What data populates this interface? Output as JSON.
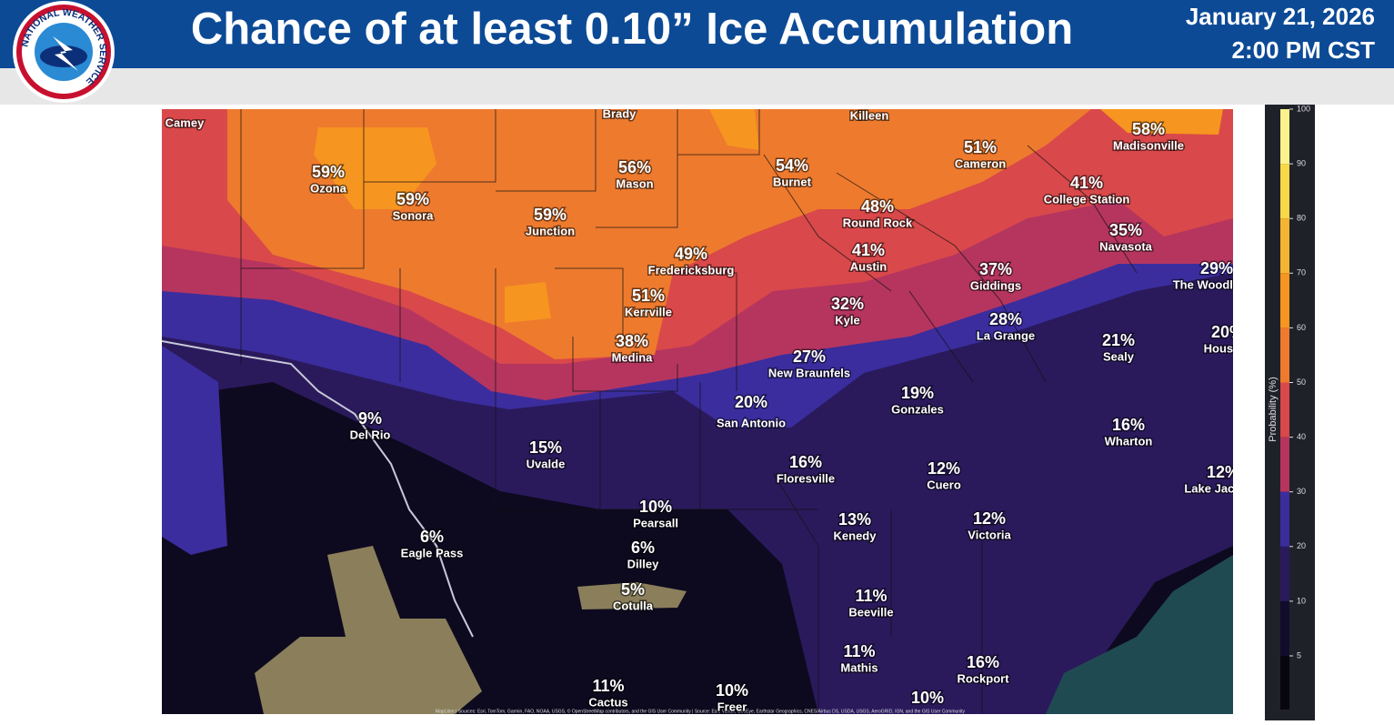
{
  "header": {
    "title": "Chance of at least 0.10” Ice Accumulation",
    "date": "January 21, 2026",
    "time": "2:00 PM CST",
    "logo_text": "NATIONAL WEATHER SERVICE"
  },
  "map": {
    "cities": [
      {
        "name": "Camey"
      },
      {
        "name": "Brady"
      },
      {
        "name": "Killeen"
      },
      {
        "label": "59%",
        "name": "Ozona"
      },
      {
        "label": "59%",
        "name": "Sonora"
      },
      {
        "label": "59%",
        "name": "Junction"
      },
      {
        "label": "56%",
        "name": "Mason"
      },
      {
        "label": "54%",
        "name": "Burnet"
      },
      {
        "label": "48%",
        "name": "Round Rock"
      },
      {
        "label": "51%",
        "name": "Cameron"
      },
      {
        "label": "58%",
        "name": "Madisonville"
      },
      {
        "label": "41%",
        "name": "College Station"
      },
      {
        "label": "35%",
        "name": "Navasota"
      },
      {
        "label": "49%",
        "name": "Fredericksburg"
      },
      {
        "label": "41%",
        "name": "Austin"
      },
      {
        "label": "37%",
        "name": "Giddings"
      },
      {
        "label": "29%",
        "name": "The Woodlands"
      },
      {
        "label": "51%",
        "name": "Kerrville"
      },
      {
        "label": "32%",
        "name": "Kyle"
      },
      {
        "label": "28%",
        "name": "La Grange"
      },
      {
        "label": "38%",
        "name": "Medina"
      },
      {
        "label": "27%",
        "name": "New Braunfels"
      },
      {
        "label": "21%",
        "name": "Sealy"
      },
      {
        "label": "20%",
        "name": "Houston"
      },
      {
        "label": "20%",
        "name": "San Antonio"
      },
      {
        "label": "19%",
        "name": "Gonzales"
      },
      {
        "label": "9%",
        "name": "Del Rio"
      },
      {
        "label": "15%",
        "name": "Uvalde"
      },
      {
        "label": "16%",
        "name": "Wharton"
      },
      {
        "label": "16%",
        "name": "Floresville"
      },
      {
        "label": "12%",
        "name": "Cuero"
      },
      {
        "label": "12%",
        "name": "Lake Jackson"
      },
      {
        "label": "10%",
        "name": "Pearsall"
      },
      {
        "label": "13%",
        "name": "Kenedy"
      },
      {
        "label": "12%",
        "name": "Victoria"
      },
      {
        "label": "6%",
        "name": "Eagle Pass"
      },
      {
        "label": "6%",
        "name": "Dilley"
      },
      {
        "label": "5%",
        "name": "Cotulla"
      },
      {
        "label": "11%",
        "name": "Beeville"
      },
      {
        "label": "11%",
        "name": "Mathis"
      },
      {
        "label": "16%",
        "name": "Rockport"
      },
      {
        "label": "11%",
        "name": "Cactus"
      },
      {
        "label": "10%",
        "name": "Freer"
      },
      {
        "label": "10%"
      }
    ],
    "attribution": "MapLibre | Sources: Esri, TomTom, Garmin, FAO, NOAA, USGS, © OpenStreetMap contributors, and the GIS User Community | Source: Esri, Vantor, GeoEye, Earthstar Geographics, CNES/Airbus DS, USDA, USGS, AeroGRID, IGN, and the GIS User Community"
  },
  "colorbar": {
    "label": "Probability (%)",
    "ticks": [
      100,
      90,
      80,
      70,
      60,
      50,
      40,
      30,
      20,
      10,
      5
    ],
    "colors": [
      "#fbf28e",
      "#f8d847",
      "#f6b530",
      "#f6951f",
      "#ee7a2e",
      "#d9484a",
      "#b5355f",
      "#3b2d9e",
      "#2a1a5c",
      "#120c2c"
    ]
  }
}
